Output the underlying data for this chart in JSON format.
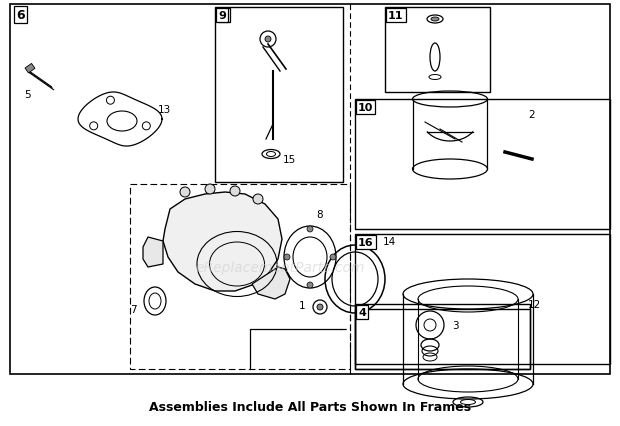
{
  "bg_color": "#ffffff",
  "border_color": "#000000",
  "text_color": "#000000",
  "caption": "Assemblies Include All Parts Shown In Frames",
  "caption_fontsize": 9,
  "watermark": "eReplacementParts.com",
  "watermark_color": "#cccccc",
  "watermark_fontsize": 10,
  "fig_w": 6.2,
  "fig_h": 4.27,
  "dpi": 100
}
